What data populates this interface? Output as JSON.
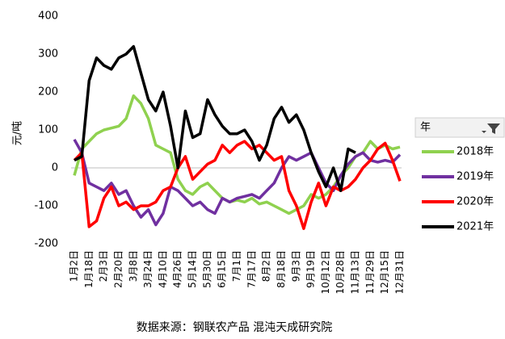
{
  "chart_data": {
    "type": "line",
    "y_label": "元/吨",
    "source": "数据来源：钢联农产品 混沌天成研究院",
    "legend_title": "年",
    "legend_position": "right",
    "categories": [
      "1月2日",
      null,
      "1月18日",
      null,
      "2月3日",
      null,
      "2月20日",
      null,
      "3月8日",
      null,
      "3月24日",
      null,
      "4月10日",
      null,
      "4月26日",
      null,
      "5月14日",
      null,
      "5月30日",
      null,
      "6月15日",
      null,
      "7月1日",
      null,
      "7月17日",
      null,
      "8月2日",
      null,
      "8月18日",
      null,
      "9月3日",
      null,
      "9月19日",
      null,
      "10月12日",
      null,
      "10月28日",
      null,
      "11月13日",
      null,
      "11月29日",
      null,
      "12月15日",
      null,
      "12月31日"
    ],
    "series": [
      {
        "name": "2018年",
        "color": "#8fd14f",
        "values": [
          -20,
          50,
          70,
          90,
          100,
          105,
          110,
          130,
          190,
          170,
          130,
          60,
          50,
          40,
          -30,
          -60,
          -70,
          -50,
          -40,
          -60,
          -80,
          -90,
          -85,
          -90,
          -80,
          -95,
          -90,
          -100,
          -110,
          -120,
          -110,
          -100,
          -70,
          -80,
          -70,
          -50,
          -20,
          0,
          30,
          40,
          70,
          50,
          60,
          50,
          55
        ]
      },
      {
        "name": "2019年",
        "color": "#7030a0",
        "values": [
          75,
          40,
          -40,
          -50,
          -60,
          -40,
          -70,
          -60,
          -100,
          -130,
          -110,
          -150,
          -120,
          -50,
          -60,
          -80,
          -100,
          -90,
          -110,
          -120,
          -80,
          -90,
          -80,
          -75,
          -70,
          -80,
          -60,
          -40,
          0,
          30,
          20,
          30,
          40,
          0,
          -40,
          -60,
          -20,
          10,
          30,
          40,
          20,
          15,
          20,
          15,
          35
        ]
      },
      {
        "name": "2020年",
        "color": "#ff0000",
        "values": [
          20,
          40,
          -155,
          -140,
          -80,
          -50,
          -100,
          -90,
          -110,
          -100,
          -100,
          -90,
          -60,
          -50,
          0,
          30,
          -30,
          -10,
          10,
          20,
          60,
          40,
          60,
          70,
          50,
          60,
          40,
          20,
          30,
          -60,
          -100,
          -160,
          -90,
          -40,
          -100,
          -50,
          -60,
          -50,
          -30,
          0,
          20,
          50,
          65,
          20,
          -35
        ]
      },
      {
        "name": "2021年",
        "color": "#000000",
        "values": [
          20,
          30,
          230,
          290,
          270,
          260,
          290,
          300,
          320,
          250,
          180,
          150,
          200,
          110,
          0,
          150,
          80,
          90,
          180,
          140,
          110,
          90,
          90,
          100,
          70,
          20,
          60,
          130,
          160,
          120,
          140,
          100,
          40,
          -10,
          -50,
          0,
          -60,
          50,
          40,
          null,
          null,
          null,
          null,
          null,
          null
        ]
      }
    ],
    "ylim": [
      -200,
      400
    ],
    "yticks": [
      -200,
      -100,
      0,
      100,
      200,
      300,
      400
    ],
    "grid": false
  }
}
